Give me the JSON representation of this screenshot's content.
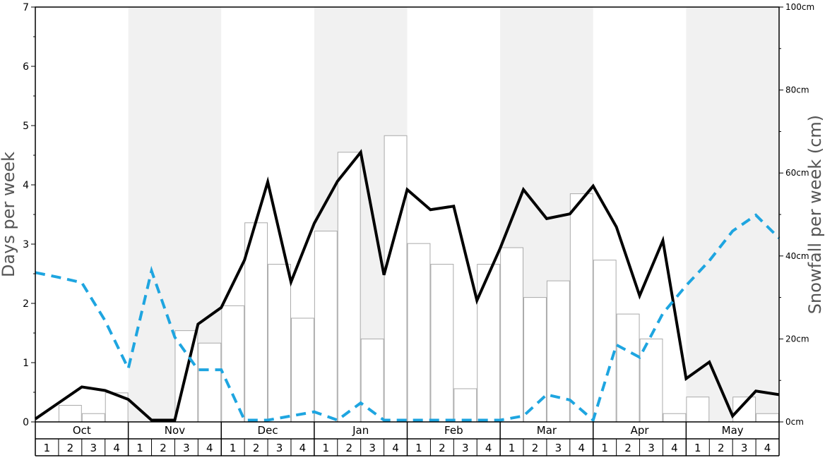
{
  "chart_data": {
    "type": "bar+line",
    "title": "",
    "ylabel_left": "Days per week",
    "ylabel_right": "Snowfall per week (cm)",
    "ylim_left": [
      0,
      7
    ],
    "ylim_right": [
      0,
      100
    ],
    "left_ticks": [
      "0",
      "1",
      "2",
      "3",
      "4",
      "5",
      "6",
      "7"
    ],
    "right_ticks": [
      "0cm",
      "20cm",
      "40cm",
      "60cm",
      "80cm",
      "100cm"
    ],
    "months": [
      "Oct",
      "Nov",
      "Dec",
      "Jan",
      "Feb",
      "Mar",
      "Apr",
      "May"
    ],
    "weeks": [
      "1",
      "2",
      "3",
      "4"
    ],
    "shaded_months": [
      "Nov",
      "Jan",
      "Mar",
      "May"
    ],
    "shade_color": "#f1f1f1",
    "snowfall_cm": [
      0,
      4,
      2,
      7,
      0,
      0,
      22,
      19,
      28,
      48,
      38,
      25,
      46,
      65,
      20,
      69,
      43,
      38,
      8,
      38,
      42,
      30,
      34,
      55,
      39,
      26,
      20,
      2,
      6,
      0,
      6,
      2
    ],
    "series": [
      {
        "color": "#000000",
        "values": [
          0.05,
          0.32,
          0.59,
          0.53,
          0.38,
          0.03,
          0.03,
          1.65,
          1.93,
          2.73,
          4.05,
          2.36,
          3.35,
          4.06,
          4.55,
          2.48,
          3.92,
          3.58,
          3.64,
          2.05,
          2.93,
          3.92,
          3.43,
          3.51,
          3.98,
          3.29,
          2.13,
          3.06,
          0.73,
          1.01,
          0.1,
          0.52,
          0.46
        ]
      },
      {
        "color": "#1ea5e0",
        "values": [
          2.52,
          2.44,
          2.35,
          1.71,
          0.9,
          2.55,
          1.43,
          0.88,
          0.88,
          0.03,
          0.03,
          0.1,
          0.17,
          0.03,
          0.32,
          0.03,
          0.03,
          0.03,
          0.03,
          0.03,
          0.03,
          0.1,
          0.46,
          0.37,
          0.03,
          1.3,
          1.09,
          1.83,
          2.3,
          2.72,
          3.22,
          3.49,
          3.1
        ]
      }
    ]
  }
}
